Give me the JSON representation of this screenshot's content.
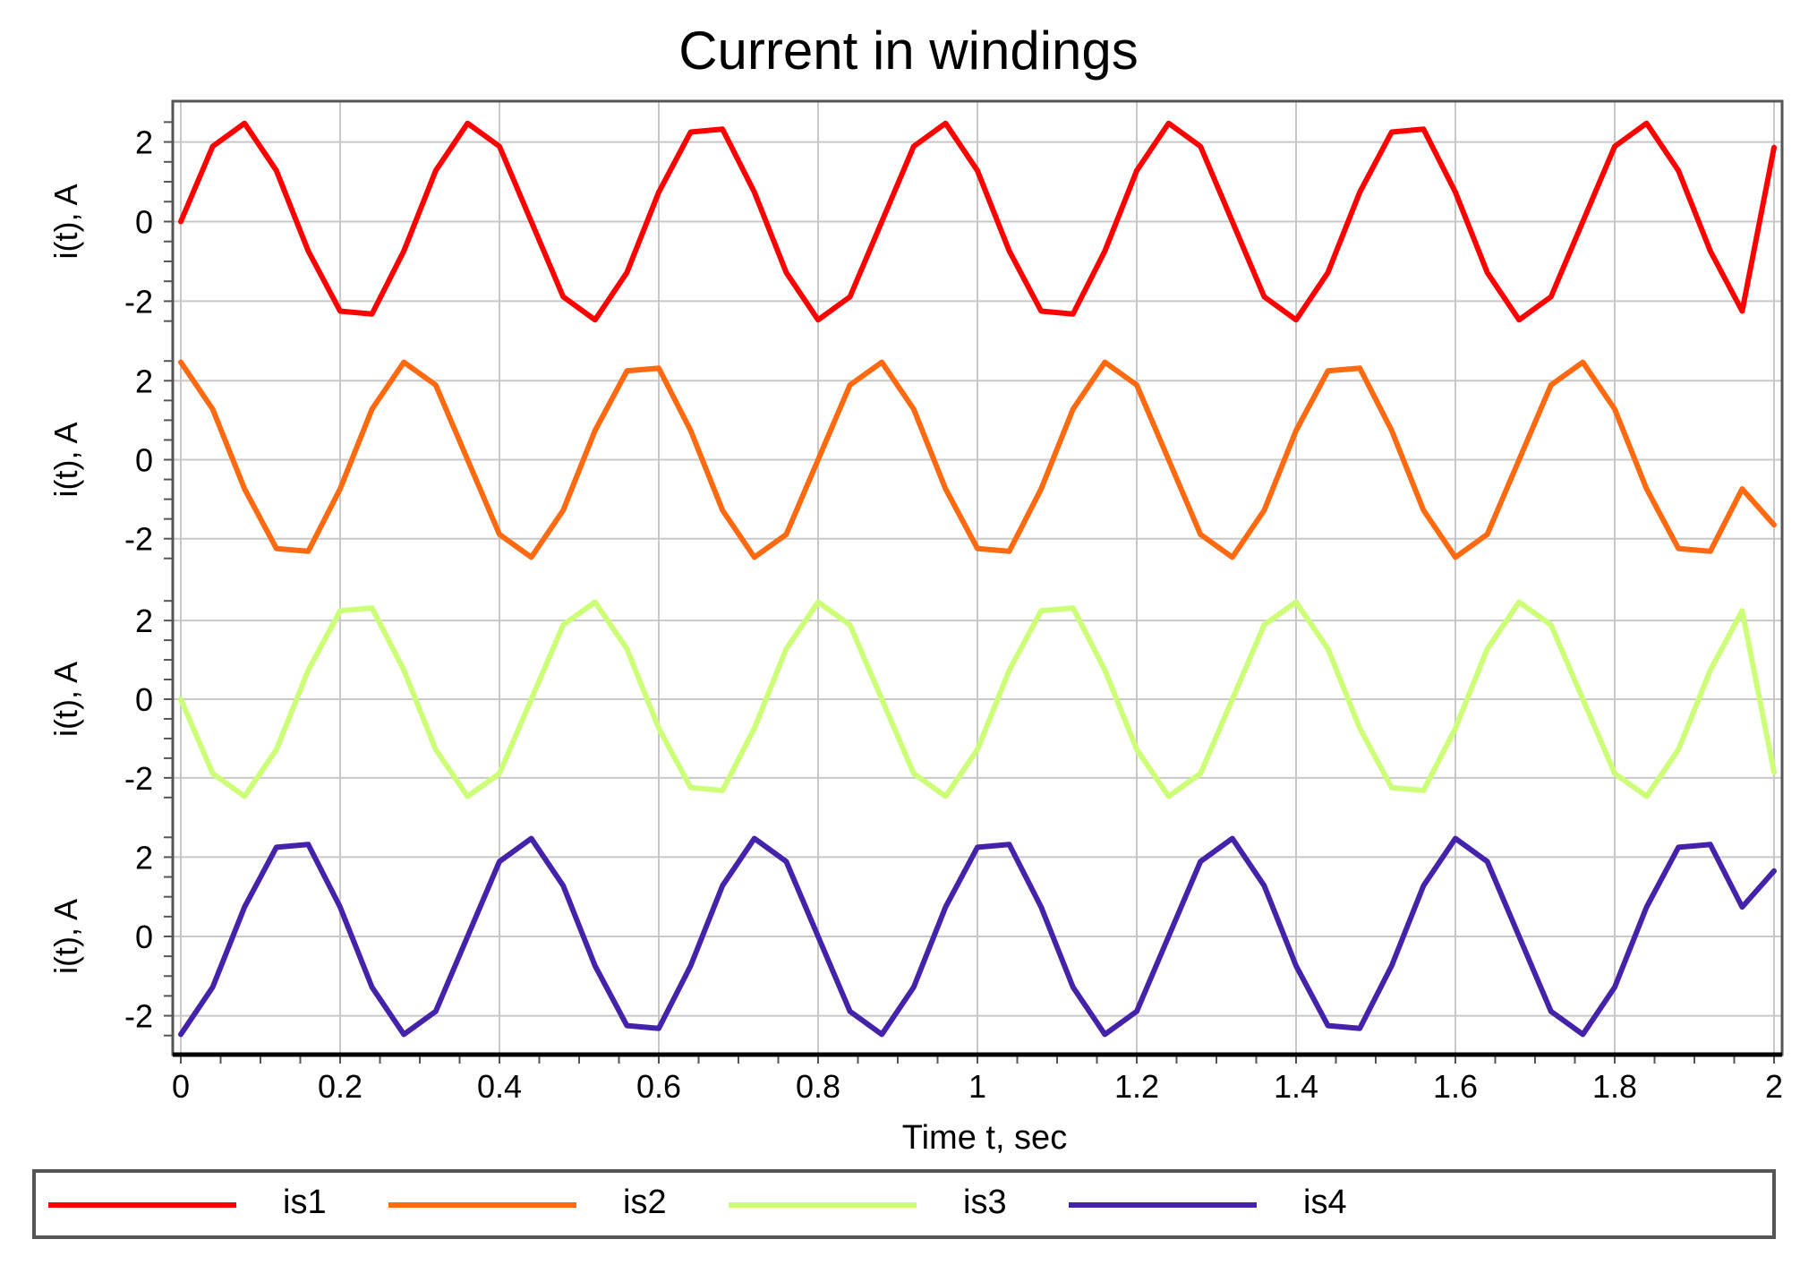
{
  "chart_data": {
    "type": "line",
    "title": "Current in windings",
    "xlabel": "Time t, sec",
    "ylabel": "i(t), A",
    "xlim": [
      0,
      2
    ],
    "ylim": [
      -2.8,
      2.8
    ],
    "x_ticks": [
      "0",
      "0.2",
      "0.4",
      "0.6",
      "0.8",
      "1",
      "1.2",
      "1.4",
      "1.6",
      "1.8",
      "2"
    ],
    "y_ticks": [
      "2",
      "0",
      "-2"
    ],
    "grid": true,
    "legend_position": "bottom",
    "layout": "stacked-subplots",
    "x": [
      0,
      0.04,
      0.08,
      0.12,
      0.16,
      0.2,
      0.24,
      0.28,
      0.32,
      0.36,
      0.4,
      0.44,
      0.48,
      0.52,
      0.56,
      0.6,
      0.64,
      0.68,
      0.72,
      0.76,
      0.8,
      0.84,
      0.88,
      0.92,
      0.96,
      1.0,
      1.04,
      1.08,
      1.12,
      1.16,
      1.2,
      1.24,
      1.28,
      1.32,
      1.36,
      1.4,
      1.44,
      1.48,
      1.52,
      1.56,
      1.6,
      1.64,
      1.68,
      1.72,
      1.76,
      1.8,
      1.84,
      1.88,
      1.92,
      1.96,
      2.0
    ],
    "series": [
      {
        "name": "is1",
        "color": "#ff0000",
        "values": [
          0.0,
          1.89,
          2.47,
          1.28,
          -0.74,
          -2.25,
          -2.32,
          -0.74,
          1.28,
          2.47,
          1.89,
          0.0,
          -1.89,
          -2.47,
          -1.28,
          0.74,
          2.25,
          2.32,
          0.74,
          -1.28,
          -2.47,
          -1.89,
          0.0,
          1.89,
          2.47,
          1.28,
          -0.74,
          -2.25,
          -2.32,
          -0.74,
          1.28,
          2.47,
          1.89,
          0.0,
          -1.89,
          -2.47,
          -1.28,
          0.74,
          2.25,
          2.32,
          0.74,
          -1.28,
          -2.47,
          -1.89,
          0.0,
          1.89,
          2.47,
          1.28,
          -0.74,
          -2.25,
          1.86
        ]
      },
      {
        "name": "is2",
        "color": "#ff6a10",
        "values": [
          2.47,
          1.28,
          -0.74,
          -2.25,
          -2.32,
          -0.74,
          1.28,
          2.47,
          1.89,
          0.0,
          -1.89,
          -2.47,
          -1.28,
          0.74,
          2.25,
          2.32,
          0.74,
          -1.28,
          -2.47,
          -1.89,
          0.0,
          1.89,
          2.47,
          1.28,
          -0.74,
          -2.25,
          -2.32,
          -0.74,
          1.28,
          2.47,
          1.89,
          0.0,
          -1.89,
          -2.47,
          -1.28,
          0.74,
          2.25,
          2.32,
          0.74,
          -1.28,
          -2.47,
          -1.89,
          0.0,
          1.89,
          2.47,
          1.28,
          -0.74,
          -2.25,
          -2.32,
          -0.74,
          -1.65
        ]
      },
      {
        "name": "is3",
        "color": "#ccff77",
        "values": [
          0.0,
          -1.89,
          -2.47,
          -1.28,
          0.74,
          2.25,
          2.32,
          0.74,
          -1.28,
          -2.47,
          -1.89,
          0.0,
          1.89,
          2.47,
          1.28,
          -0.74,
          -2.25,
          -2.32,
          -0.74,
          1.28,
          2.47,
          1.89,
          0.0,
          -1.89,
          -2.47,
          -1.28,
          0.74,
          2.25,
          2.32,
          0.74,
          -1.28,
          -2.47,
          -1.89,
          0.0,
          1.89,
          2.47,
          1.28,
          -0.74,
          -2.25,
          -2.32,
          -0.74,
          1.28,
          2.47,
          1.89,
          0.0,
          -1.89,
          -2.47,
          -1.28,
          0.74,
          2.25,
          -1.86
        ]
      },
      {
        "name": "is4",
        "color": "#4422aa",
        "values": [
          -2.47,
          -1.28,
          0.74,
          2.25,
          2.32,
          0.74,
          -1.28,
          -2.47,
          -1.89,
          0.0,
          1.89,
          2.47,
          1.28,
          -0.74,
          -2.25,
          -2.32,
          -0.74,
          1.28,
          2.47,
          1.89,
          0.0,
          -1.89,
          -2.47,
          -1.28,
          0.74,
          2.25,
          2.32,
          0.74,
          -1.28,
          -2.47,
          -1.89,
          0.0,
          1.89,
          2.47,
          1.28,
          -0.74,
          -2.25,
          -2.32,
          -0.74,
          1.28,
          2.47,
          1.89,
          0.0,
          -1.89,
          -2.47,
          -1.28,
          0.74,
          2.25,
          2.32,
          0.74,
          1.65
        ]
      }
    ]
  }
}
